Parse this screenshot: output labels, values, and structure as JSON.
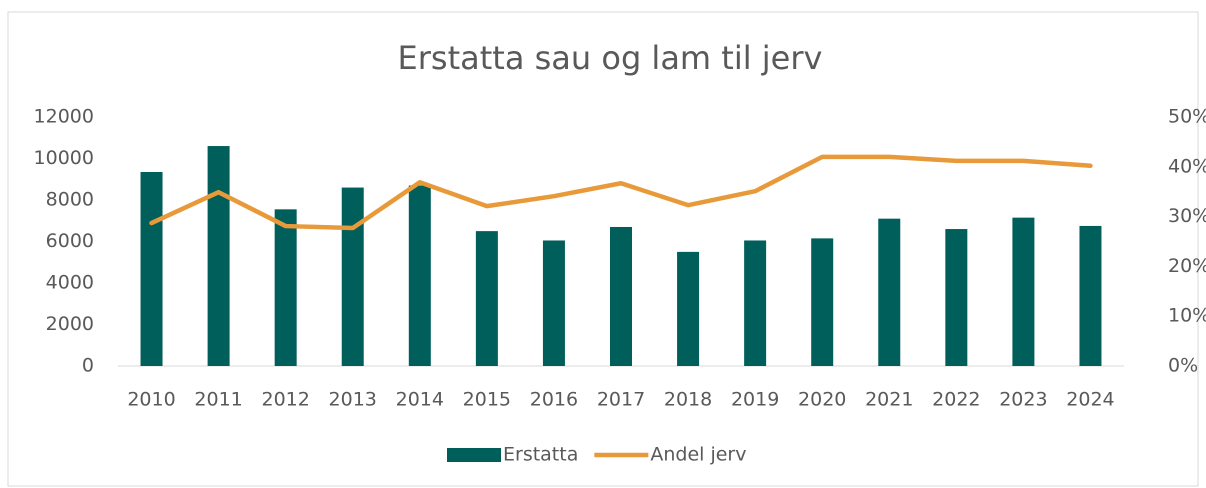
{
  "chart_data": {
    "type": "bar_line",
    "title": "Erstatta sau og lam til jerv",
    "categories": [
      "2010",
      "2011",
      "2012",
      "2013",
      "2014",
      "2015",
      "2016",
      "2017",
      "2018",
      "2019",
      "2020",
      "2021",
      "2022",
      "2023",
      "2024"
    ],
    "series": [
      {
        "name": "Erstatta",
        "type": "bar",
        "color": "#005f5b",
        "values": [
          9350,
          10600,
          7550,
          8600,
          8700,
          6500,
          6050,
          6700,
          5500,
          6050,
          6150,
          7100,
          6600,
          7150,
          6750
        ]
      },
      {
        "name": "Andel jerv",
        "type": "line",
        "axis": "y2",
        "color": "#e89a3a",
        "values": [
          28.7,
          34.9,
          28.1,
          27.7,
          36.9,
          32.1,
          34.1,
          36.7,
          32.3,
          35.1,
          42.0,
          42.0,
          41.2,
          41.2,
          40.2
        ]
      }
    ],
    "ylim": [
      0,
      12000
    ],
    "yticks": [
      0,
      2000,
      4000,
      6000,
      8000,
      10000,
      12000
    ],
    "y2lim": [
      0,
      50
    ],
    "y2ticks": [
      {
        "value": 0,
        "label": "0%"
      },
      {
        "value": 10,
        "label": "10%"
      },
      {
        "value": 20,
        "label": "20%"
      },
      {
        "value": 30,
        "label": "30%"
      },
      {
        "value": 40,
        "label": "40%"
      },
      {
        "value": 50,
        "label": "50%"
      }
    ],
    "legend": "bottom"
  }
}
